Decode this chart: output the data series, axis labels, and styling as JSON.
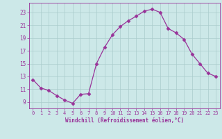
{
  "x": [
    0,
    1,
    2,
    3,
    4,
    5,
    6,
    7,
    8,
    9,
    10,
    11,
    12,
    13,
    14,
    15,
    16,
    17,
    18,
    19,
    20,
    21,
    22,
    23
  ],
  "y": [
    12.5,
    11.2,
    10.8,
    10.0,
    9.3,
    8.8,
    10.2,
    10.3,
    15.0,
    17.5,
    19.5,
    20.8,
    21.7,
    22.4,
    23.2,
    23.5,
    23.0,
    20.5,
    19.8,
    18.8,
    16.5,
    15.0,
    13.5,
    13.0
  ],
  "line_color": "#993399",
  "marker": "D",
  "marker_size": 2.5,
  "bg_color": "#cce8e8",
  "grid_color": "#aacccc",
  "tick_color": "#993399",
  "label_color": "#993399",
  "xlabel": "Windchill (Refroidissement éolien,°C)",
  "ylim": [
    8.0,
    24.5
  ],
  "yticks": [
    9,
    11,
    13,
    15,
    17,
    19,
    21,
    23
  ],
  "xticks": [
    0,
    1,
    2,
    3,
    4,
    5,
    6,
    7,
    8,
    9,
    10,
    11,
    12,
    13,
    14,
    15,
    16,
    17,
    18,
    19,
    20,
    21,
    22,
    23
  ]
}
